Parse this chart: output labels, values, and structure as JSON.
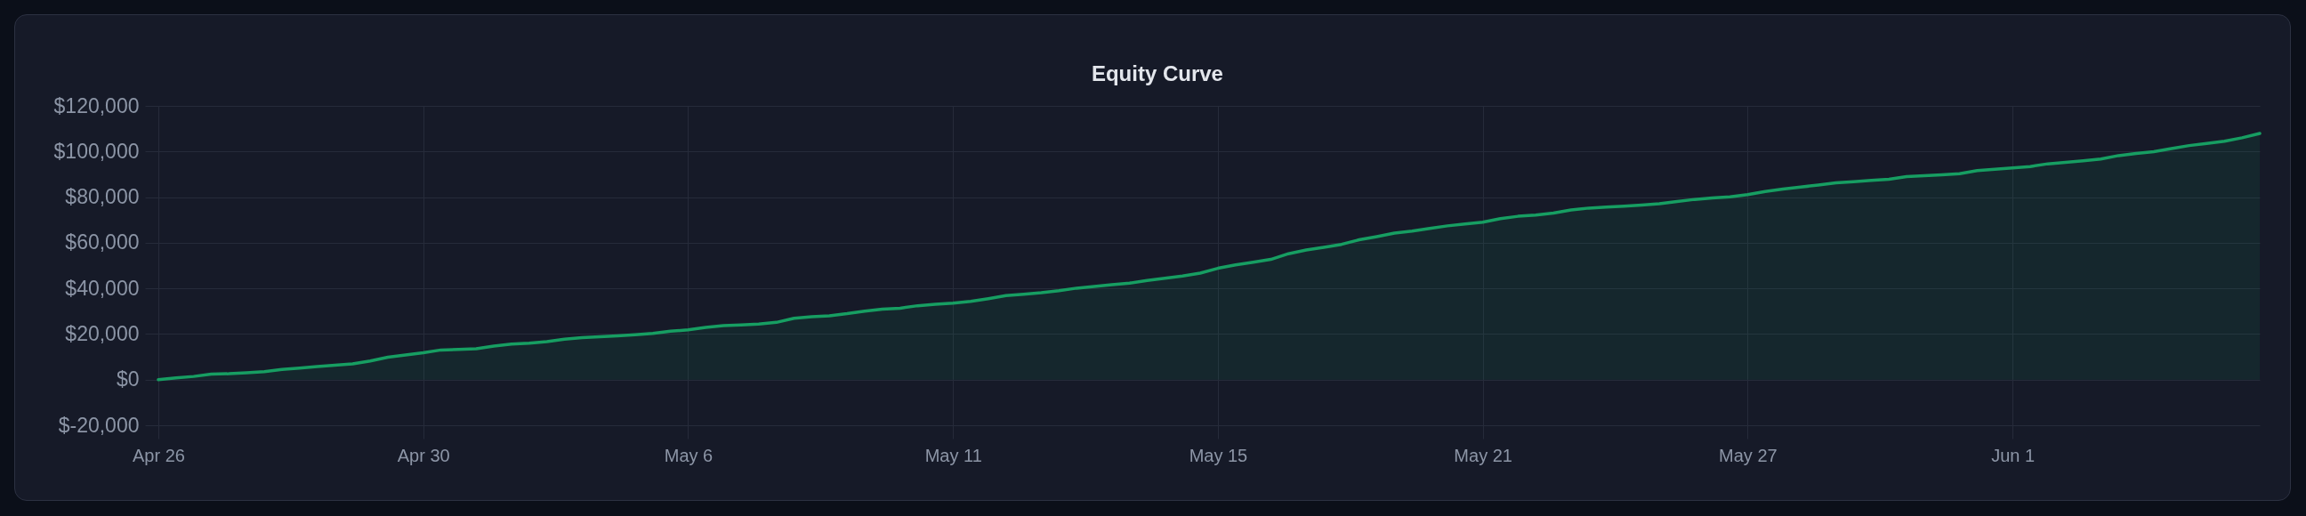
{
  "chart_data": {
    "type": "area",
    "title": "Equity Curve",
    "categories": [
      "Apr 26",
      null,
      null,
      null,
      null,
      null,
      null,
      null,
      null,
      null,
      null,
      null,
      null,
      null,
      null,
      "Apr 30",
      null,
      null,
      null,
      null,
      null,
      null,
      null,
      null,
      null,
      null,
      null,
      null,
      null,
      null,
      "May 6",
      null,
      null,
      null,
      null,
      null,
      null,
      null,
      null,
      null,
      null,
      null,
      null,
      null,
      null,
      "May 11",
      null,
      null,
      null,
      null,
      null,
      null,
      null,
      null,
      null,
      null,
      null,
      null,
      null,
      null,
      "May 15",
      null,
      null,
      null,
      null,
      null,
      null,
      null,
      null,
      null,
      null,
      null,
      null,
      null,
      null,
      "May 21",
      null,
      null,
      null,
      null,
      null,
      null,
      null,
      null,
      null,
      null,
      null,
      null,
      null,
      null,
      "May 27",
      null,
      null,
      null,
      null,
      null,
      null,
      null,
      null,
      null,
      null,
      null,
      null,
      null,
      null,
      "Jun 1",
      null,
      null,
      null,
      null,
      null,
      null,
      null,
      null,
      null,
      null,
      null,
      null,
      null,
      null
    ],
    "values": [
      0,
      800,
      1400,
      2400,
      2600,
      3000,
      3500,
      4500,
      5100,
      5700,
      6300,
      6900,
      8200,
      9800,
      10800,
      11800,
      13000,
      13200,
      13500,
      14700,
      15600,
      16000,
      16700,
      17700,
      18400,
      18800,
      19200,
      19700,
      20300,
      21200,
      21800,
      22900,
      23700,
      24000,
      24400,
      25100,
      26900,
      27600,
      28000,
      28900,
      30000,
      30900,
      31300,
      32400,
      33000,
      33500,
      34300,
      35500,
      36800,
      37400,
      38100,
      39000,
      40100,
      40800,
      41600,
      42300,
      43500,
      44400,
      45400,
      46700,
      48800,
      50300,
      51500,
      52700,
      55200,
      56800,
      58000,
      59300,
      61300,
      62700,
      64200,
      65100,
      66300,
      67400,
      68200,
      69000,
      70600,
      71600,
      72100,
      73000,
      74400,
      75200,
      75600,
      76000,
      76500,
      77100,
      78100,
      79000,
      79600,
      80100,
      81100,
      82500,
      83500,
      84400,
      85300,
      86300,
      86800,
      87300,
      87800,
      89000,
      89400,
      89800,
      90300,
      91600,
      92200,
      92800,
      93400,
      94600,
      95200,
      95900,
      96700,
      98200,
      99100,
      99900,
      101300,
      102600,
      103500,
      104500,
      106000,
      107900
    ],
    "color": "#179e62",
    "ylim": [
      -20000,
      120000
    ],
    "yticks": [
      {
        "value": -20000,
        "label": "$-20,000"
      },
      {
        "value": 0,
        "label": "$0"
      },
      {
        "value": 20000,
        "label": "$20,000"
      },
      {
        "value": 40000,
        "label": "$40,000"
      },
      {
        "value": 60000,
        "label": "$60,000"
      },
      {
        "value": 80000,
        "label": "$80,000"
      },
      {
        "value": 100000,
        "label": "$100,000"
      },
      {
        "value": 120000,
        "label": "$120,000"
      }
    ],
    "grid": true
  }
}
